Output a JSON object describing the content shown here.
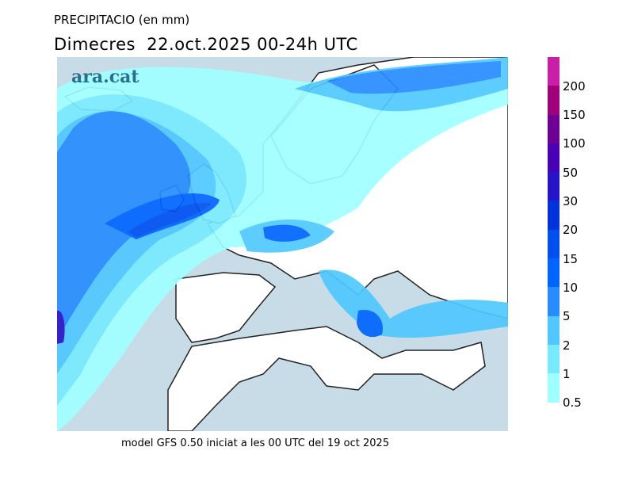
{
  "header": {
    "title": "PRECIPITACIO (en mm)",
    "subtitle": "Dimecres  22.oct.2025 00-24h UTC"
  },
  "logo": "ara.cat",
  "footer": "model GFS 0.50 iniciat a les 00 UTC del 19 oct 2025",
  "legend": {
    "colors": [
      "#c81ea8",
      "#a0007a",
      "#6e0096",
      "#4a00b4",
      "#2814c8",
      "#0032dc",
      "#0050f0",
      "#0064ff",
      "#288cff",
      "#50c8ff",
      "#78eaff",
      "#a0ffff"
    ],
    "labels": [
      "200",
      "150",
      "100",
      "50",
      "30",
      "20",
      "15",
      "10",
      "5",
      "2",
      "1",
      "0.5"
    ]
  },
  "colors": {
    "sea": "#c8dce8",
    "land": "#ffffff"
  }
}
